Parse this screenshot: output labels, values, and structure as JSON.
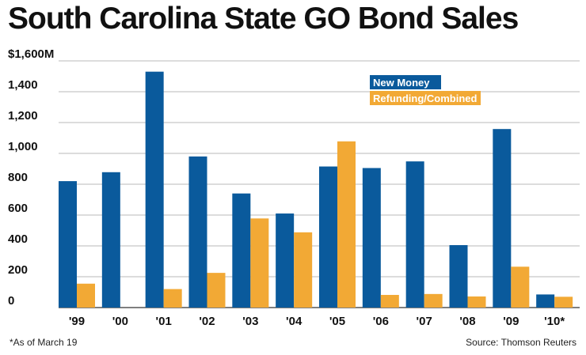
{
  "colors": {
    "new_money": "#0a5a9c",
    "refunding": "#f2a935",
    "grid": "#b8b8b8"
  },
  "footnote": "*As of March 19",
  "source": "Source: Thomson Reuters",
  "chart_data": {
    "type": "bar",
    "title": "South Carolina State GO Bond Sales",
    "xlabel": "",
    "ylabel": "",
    "categories": [
      "'99",
      "'00",
      "'01",
      "'02",
      "'03",
      "'04",
      "'05",
      "'06",
      "'07",
      "'08",
      "'09",
      "'10*"
    ],
    "series": [
      {
        "name": "New Money",
        "values": [
          820,
          878,
          1530,
          980,
          740,
          610,
          915,
          905,
          948,
          405,
          1158,
          85
        ]
      },
      {
        "name": "Refunding/Combined",
        "values": [
          155,
          0,
          120,
          225,
          578,
          488,
          1078,
          82,
          88,
          72,
          265,
          70
        ]
      }
    ],
    "ylim": [
      0,
      1600
    ],
    "yticks": [
      0,
      200,
      400,
      600,
      800,
      1000,
      1200,
      1400,
      1600
    ],
    "ytick_labels": [
      "0",
      "200",
      "400",
      "600",
      "800",
      "1,000",
      "1,200",
      "1,400",
      "$1,600M"
    ],
    "grid": true,
    "legend_position": "top-right"
  }
}
